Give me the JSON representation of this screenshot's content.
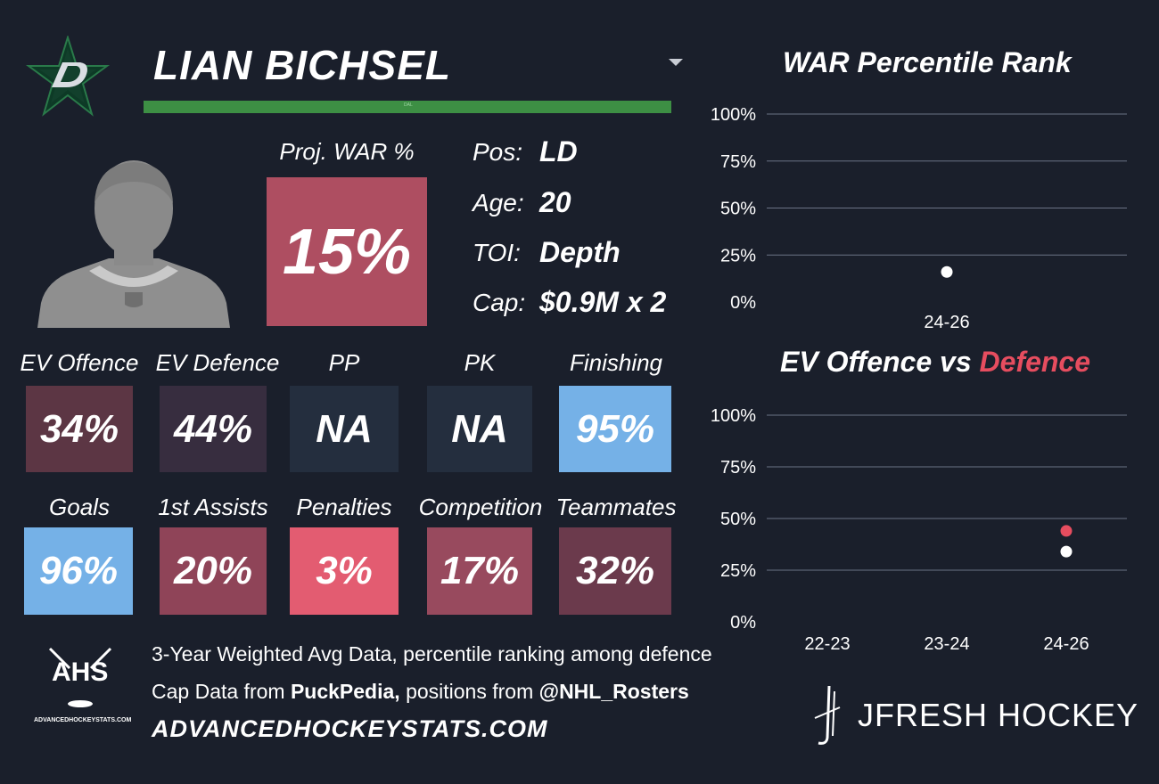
{
  "player": {
    "name": "LIAN BICHSEL",
    "bar_label": "DAL",
    "proj_war_label": "Proj. WAR %",
    "proj_war_value": "15%",
    "team_color": "#006847"
  },
  "info": [
    {
      "label": "Pos:",
      "value": "LD"
    },
    {
      "label": "Age:",
      "value": "20"
    },
    {
      "label": "TOI:",
      "value": "Depth"
    },
    {
      "label": "Cap:",
      "value": "$0.9M x 2"
    }
  ],
  "tiles_row1": [
    {
      "label": "EV Offence",
      "value": "34%",
      "color": "#5c3644"
    },
    {
      "label": "EV Defence",
      "value": "44%",
      "color": "#372d3f"
    },
    {
      "label": "PP",
      "value": "NA",
      "color": "#242e3e"
    },
    {
      "label": "PK",
      "value": "NA",
      "color": "#242e3e"
    },
    {
      "label": "Finishing",
      "value": "95%",
      "color": "#75b1e7"
    }
  ],
  "tiles_row2": [
    {
      "label": "Goals",
      "value": "96%",
      "color": "#75b1e7"
    },
    {
      "label": "1st Assists",
      "value": "20%",
      "color": "#8f4458"
    },
    {
      "label": "Penalties",
      "value": "3%",
      "color": "#e35c71"
    },
    {
      "label": "Competition",
      "value": "17%",
      "color": "#984a5e"
    },
    {
      "label": "Teammates",
      "value": "32%",
      "color": "#6b3a4c"
    }
  ],
  "footer": {
    "logo_text": "AHS",
    "logo_subtext": "ADVANCEDHOCKEYSTATS.COM",
    "line1": "3-Year Weighted Avg Data, percentile ranking among defence",
    "line2_pre": "Cap Data from ",
    "line2_source": "PuckPedia,",
    "line2_mid": " positions from ",
    "line2_handle": "@NHL_Rosters",
    "website": "ADVANCEDHOCKEYSTATS.COM",
    "brand": "JFRESH HOCKEY"
  },
  "chart_data": [
    {
      "type": "scatter",
      "title": "WAR Percentile Rank",
      "categories": [
        "24-26"
      ],
      "series": [
        {
          "values": [
            16
          ],
          "color": "#ffffff"
        }
      ],
      "yticks": [
        "100%",
        "75%",
        "50%",
        "25%",
        "0%"
      ],
      "ylim": [
        0,
        100
      ]
    },
    {
      "type": "scatter",
      "title_part1": "EV Offence vs ",
      "title_part2": "Defence",
      "title_part2_color": "#e64d5f",
      "categories": [
        "22-23",
        "23-24",
        "24-26"
      ],
      "series": [
        {
          "name": "EV Offence",
          "values": [
            null,
            null,
            34
          ],
          "color": "#ffffff"
        },
        {
          "name": "Defence",
          "values": [
            null,
            null,
            44
          ],
          "color": "#e64d5f"
        }
      ],
      "yticks": [
        "100%",
        "75%",
        "50%",
        "25%",
        "0%"
      ],
      "ylim": [
        0,
        100
      ]
    }
  ]
}
